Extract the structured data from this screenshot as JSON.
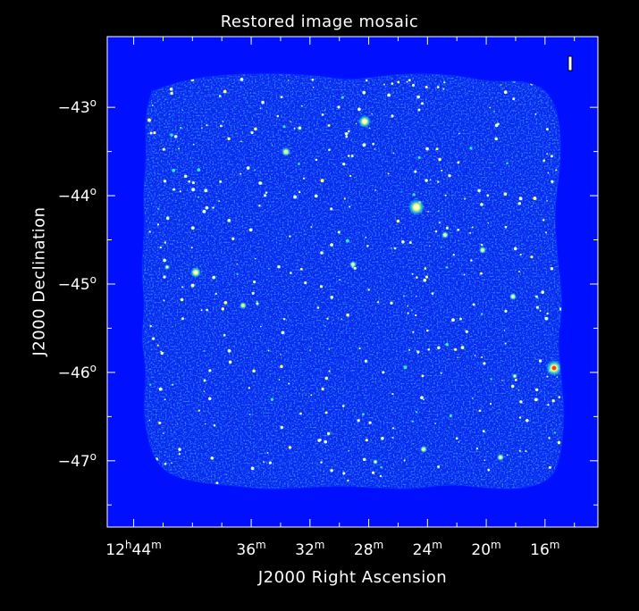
{
  "chart_data": {
    "type": "heatmap",
    "title": "Restored image mosaic",
    "xlabel": "J2000 Right Ascension",
    "ylabel": "J2000 Declination",
    "x_ticks": [
      {
        "h": "12",
        "m": "44"
      },
      {
        "h": "",
        "m": "36"
      },
      {
        "h": "",
        "m": "32"
      },
      {
        "h": "",
        "m": "28"
      },
      {
        "h": "",
        "m": "24"
      },
      {
        "h": "",
        "m": "20"
      },
      {
        "h": "",
        "m": "16"
      }
    ],
    "y_ticks": [
      "-43",
      "-44",
      "-45",
      "-46",
      "-47"
    ],
    "x_tick_minutes": [
      44,
      36,
      32,
      28,
      24,
      20,
      16
    ],
    "y_tick_degrees": [
      -43,
      -44,
      -45,
      -46,
      -47
    ],
    "xlim_minutes": [
      45.8,
      12.4
    ],
    "ylim_degrees": [
      -42.2,
      -47.75
    ],
    "grid": false,
    "colors": {
      "background": "#0010ff",
      "noise": "#0a50ff",
      "source": "#ffffff",
      "halo": "#10e0d0",
      "bright": "#ff4020"
    }
  }
}
